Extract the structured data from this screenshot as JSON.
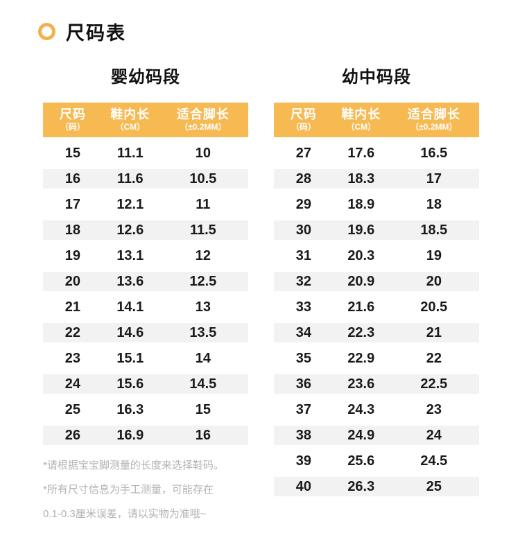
{
  "page": {
    "title": "尺码表"
  },
  "tables": [
    {
      "title": "婴幼码段",
      "headers": [
        {
          "main": "尺码",
          "sub": "（码）"
        },
        {
          "main": "鞋内长",
          "sub": "（CM）"
        },
        {
          "main": "适合脚长",
          "sub": "（±0.2MM）"
        }
      ],
      "rows": [
        [
          "15",
          "11.1",
          "10"
        ],
        [
          "16",
          "11.6",
          "10.5"
        ],
        [
          "17",
          "12.1",
          "11"
        ],
        [
          "18",
          "12.6",
          "11.5"
        ],
        [
          "19",
          "13.1",
          "12"
        ],
        [
          "20",
          "13.6",
          "12.5"
        ],
        [
          "21",
          "14.1",
          "13"
        ],
        [
          "22",
          "14.6",
          "13.5"
        ],
        [
          "23",
          "15.1",
          "14"
        ],
        [
          "24",
          "15.6",
          "14.5"
        ],
        [
          "25",
          "16.3",
          "15"
        ],
        [
          "26",
          "16.9",
          "16"
        ]
      ]
    },
    {
      "title": "幼中码段",
      "headers": [
        {
          "main": "尺码",
          "sub": "（码）"
        },
        {
          "main": "鞋内长",
          "sub": "（CM）"
        },
        {
          "main": "适合脚长",
          "sub": "（±0.2MM）"
        }
      ],
      "rows": [
        [
          "27",
          "17.6",
          "16.5"
        ],
        [
          "28",
          "18.3",
          "17"
        ],
        [
          "29",
          "18.9",
          "18"
        ],
        [
          "30",
          "19.6",
          "18.5"
        ],
        [
          "31",
          "20.3",
          "19"
        ],
        [
          "32",
          "20.9",
          "20"
        ],
        [
          "33",
          "21.6",
          "20.5"
        ],
        [
          "34",
          "22.3",
          "21"
        ],
        [
          "35",
          "22.9",
          "22"
        ],
        [
          "36",
          "23.6",
          "22.5"
        ],
        [
          "37",
          "24.3",
          "23"
        ],
        [
          "38",
          "24.9",
          "24"
        ],
        [
          "39",
          "25.6",
          "24.5"
        ],
        [
          "40",
          "26.3",
          "25"
        ]
      ]
    }
  ],
  "footnotes": [
    "*请根据宝宝脚测量的长度来选择鞋码。",
    "*所有尺寸信息为手工测量，可能存在",
    "0.1-0.3厘米误差，请以实物为准哦~"
  ],
  "colors": {
    "header_bg": "#F7B952",
    "ring_orange": "#F1B24C",
    "row_stripe": "#F2F2F2",
    "text_dark": "#1A1A1A",
    "footnote_gray": "#B2B2B2"
  },
  "chart_data": [
    {
      "type": "table",
      "title": "婴幼码段",
      "columns": [
        "尺码（码）",
        "鞋内长（CM）",
        "适合脚长（±0.2MM）"
      ],
      "rows": [
        [
          15,
          11.1,
          10
        ],
        [
          16,
          11.6,
          10.5
        ],
        [
          17,
          12.1,
          11
        ],
        [
          18,
          12.6,
          11.5
        ],
        [
          19,
          13.1,
          12
        ],
        [
          20,
          13.6,
          12.5
        ],
        [
          21,
          14.1,
          13
        ],
        [
          22,
          14.6,
          13.5
        ],
        [
          23,
          15.1,
          14
        ],
        [
          24,
          15.6,
          14.5
        ],
        [
          25,
          16.3,
          15
        ],
        [
          26,
          16.9,
          16
        ]
      ]
    },
    {
      "type": "table",
      "title": "幼中码段",
      "columns": [
        "尺码（码）",
        "鞋内长（CM）",
        "适合脚长（±0.2MM）"
      ],
      "rows": [
        [
          27,
          17.6,
          16.5
        ],
        [
          28,
          18.3,
          17
        ],
        [
          29,
          18.9,
          18
        ],
        [
          30,
          19.6,
          18.5
        ],
        [
          31,
          20.3,
          19
        ],
        [
          32,
          20.9,
          20
        ],
        [
          33,
          21.6,
          20.5
        ],
        [
          34,
          22.3,
          21
        ],
        [
          35,
          22.9,
          22
        ],
        [
          36,
          23.6,
          22.5
        ],
        [
          37,
          24.3,
          23
        ],
        [
          38,
          24.9,
          24
        ],
        [
          39,
          25.6,
          24.5
        ],
        [
          40,
          26.3,
          25
        ]
      ]
    }
  ]
}
